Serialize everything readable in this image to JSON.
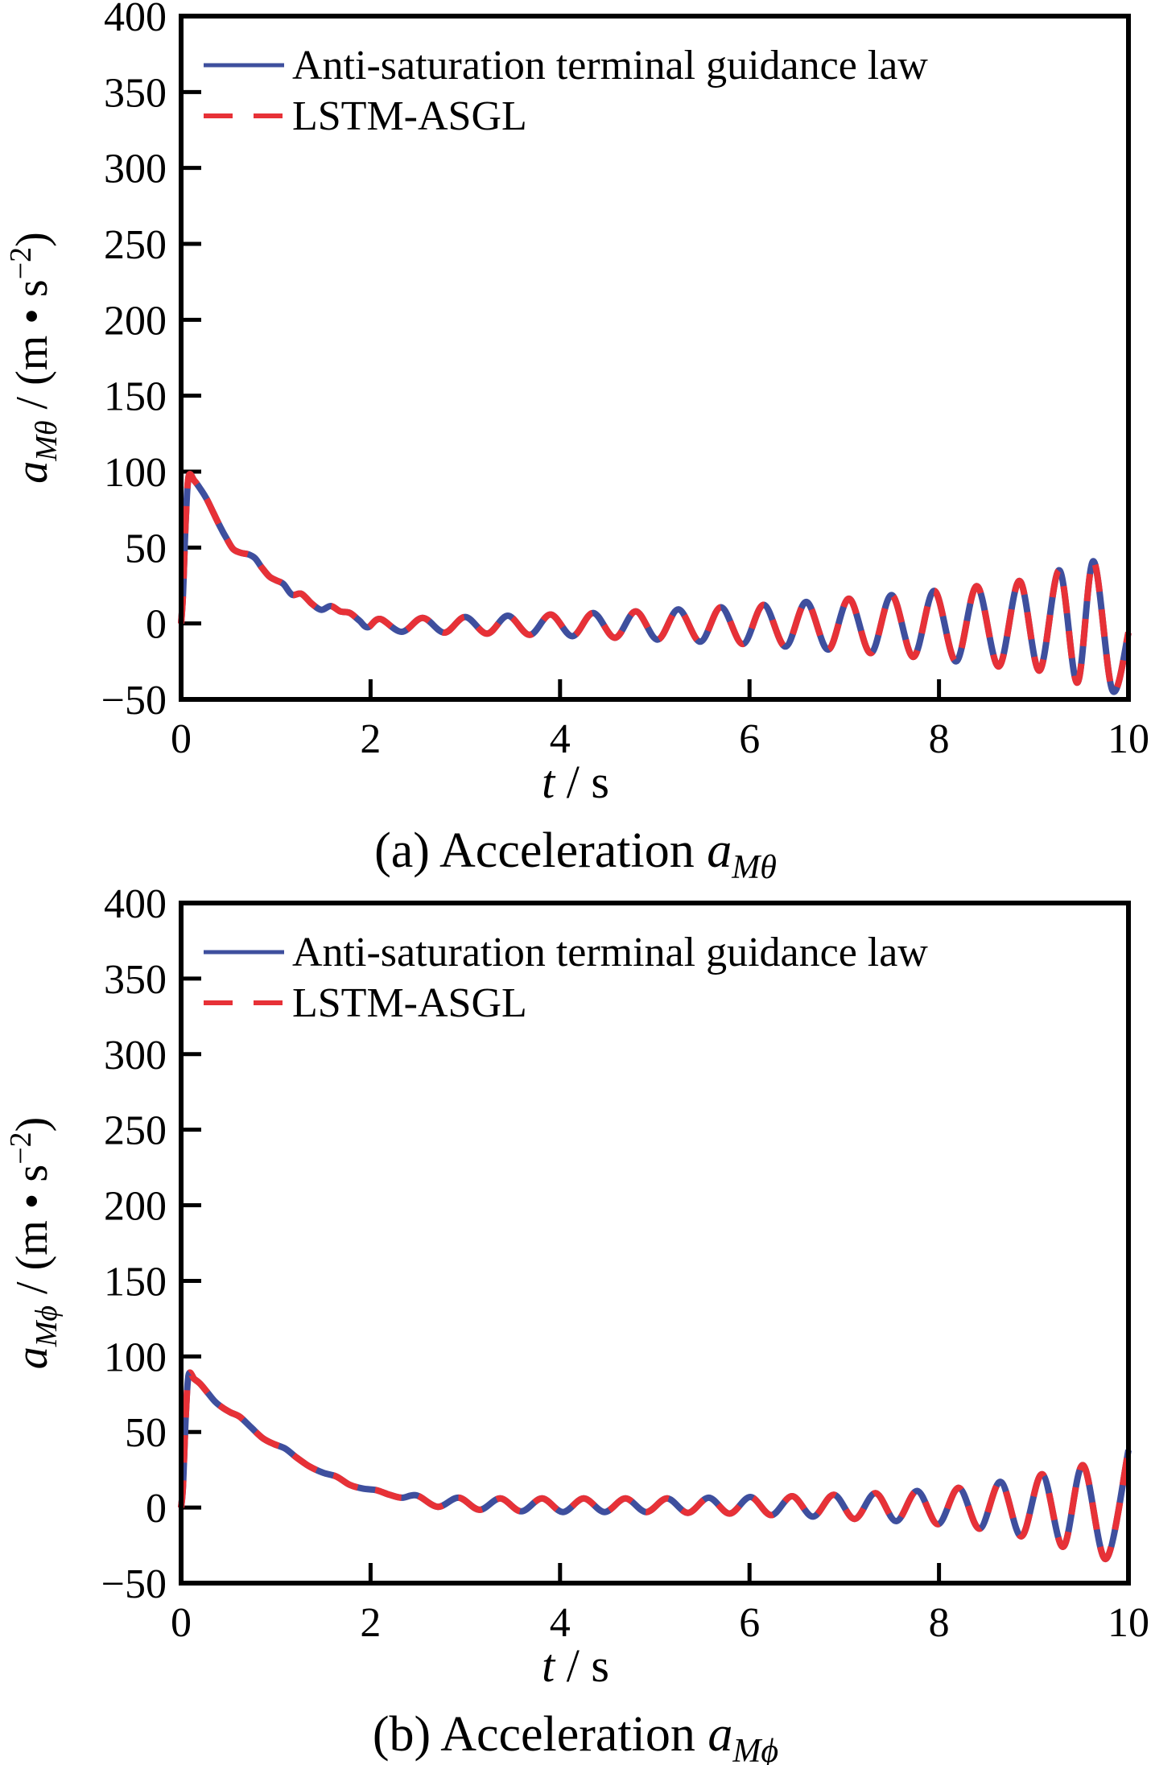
{
  "figure": {
    "background": "#ffffff",
    "axis_color": "#000000",
    "text_color": "#000000"
  },
  "chart_data": [
    {
      "type": "line",
      "panel": "a",
      "caption_prefix": "(a) Acceleration ",
      "caption_var": "a",
      "caption_sub": "Mθ",
      "xlabel_var": "t",
      "xlabel_rest": " / s",
      "ylabel_var": "a",
      "ylabel_sub": "Mθ",
      "ylabel_mid": " / (m • s",
      "ylabel_sup": "−2",
      "ylabel_end": ")",
      "xlim": [
        0,
        10
      ],
      "ylim": [
        -50,
        400
      ],
      "xticks": [
        0,
        2,
        4,
        6,
        8,
        10
      ],
      "yticks": [
        400,
        350,
        300,
        250,
        200,
        150,
        100,
        50,
        0,
        -50
      ],
      "xtick_labels": [
        "0",
        "2",
        "4",
        "6",
        "8",
        "10"
      ],
      "ytick_labels": [
        "400",
        "350",
        "300",
        "250",
        "200",
        "150",
        "100",
        "50",
        "0",
        "−50"
      ],
      "grid": false,
      "legend_position": "top-left",
      "series": [
        {
          "name": "Anti-saturation terminal guidance law",
          "color": "#3e4f9e",
          "style": "solid",
          "points": [
            [
              0,
              0
            ],
            [
              0.02,
              20
            ],
            [
              0.05,
              70
            ],
            [
              0.08,
              97
            ],
            [
              0.14,
              94
            ],
            [
              0.2,
              89
            ],
            [
              0.27,
              82
            ],
            [
              0.34,
              73
            ],
            [
              0.41,
              64
            ],
            [
              0.48,
              56
            ],
            [
              0.55,
              49
            ],
            [
              0.63,
              46.5
            ],
            [
              0.71,
              45.5
            ],
            [
              0.78,
              43
            ],
            [
              0.85,
              37
            ],
            [
              0.93,
              31
            ],
            [
              1.0,
              28.5
            ],
            [
              1.08,
              26
            ],
            [
              1.17,
              19
            ],
            [
              1.27,
              19.5
            ],
            [
              1.38,
              13
            ],
            [
              1.48,
              9
            ],
            [
              1.58,
              11.5
            ],
            [
              1.68,
              8
            ],
            [
              1.78,
              7
            ],
            [
              1.88,
              2
            ],
            [
              1.97,
              -2.5
            ],
            [
              2.1,
              3
            ],
            [
              2.33,
              -5.5
            ],
            [
              2.55,
              3.7
            ],
            [
              2.78,
              -6
            ],
            [
              3.0,
              4.3
            ],
            [
              3.23,
              -6.7
            ],
            [
              3.45,
              5.1
            ],
            [
              3.68,
              -7.5
            ],
            [
              3.9,
              5.9
            ],
            [
              4.13,
              -8.4
            ],
            [
              4.35,
              6.9
            ],
            [
              4.58,
              -9.4
            ],
            [
              4.8,
              8
            ],
            [
              5.03,
              -10.6
            ],
            [
              5.25,
              9.3
            ],
            [
              5.48,
              -12
            ],
            [
              5.7,
              10.7
            ],
            [
              5.93,
              -13.5
            ],
            [
              6.15,
              12.3
            ],
            [
              6.38,
              -15.2
            ],
            [
              6.6,
              14.2
            ],
            [
              6.83,
              -17.2
            ],
            [
              7.05,
              16.3
            ],
            [
              7.28,
              -19.5
            ],
            [
              7.5,
              18.7
            ],
            [
              7.73,
              -22
            ],
            [
              7.95,
              21.5
            ],
            [
              8.18,
              -25
            ],
            [
              8.4,
              24.6
            ],
            [
              8.63,
              -28.3
            ],
            [
              8.85,
              28
            ],
            [
              9.06,
              -31
            ],
            [
              9.27,
              35
            ],
            [
              9.46,
              -39
            ],
            [
              9.63,
              41
            ],
            [
              9.83,
              -44
            ],
            [
              10,
              -6
            ]
          ]
        },
        {
          "name": "LSTM-ASGL",
          "color": "#e73137",
          "style": "dashed",
          "points": [
            [
              0,
              0
            ],
            [
              0.02,
              20
            ],
            [
              0.05,
              70
            ],
            [
              0.08,
              97
            ],
            [
              0.14,
              94
            ],
            [
              0.2,
              89
            ],
            [
              0.27,
              82
            ],
            [
              0.34,
              73
            ],
            [
              0.41,
              64
            ],
            [
              0.48,
              56
            ],
            [
              0.55,
              49
            ],
            [
              0.63,
              46.5
            ],
            [
              0.71,
              45.5
            ],
            [
              0.78,
              43
            ],
            [
              0.85,
              37
            ],
            [
              0.93,
              31
            ],
            [
              1.0,
              28.5
            ],
            [
              1.08,
              26
            ],
            [
              1.17,
              19
            ],
            [
              1.27,
              19.5
            ],
            [
              1.38,
              13
            ],
            [
              1.48,
              9
            ],
            [
              1.58,
              11.5
            ],
            [
              1.68,
              8
            ],
            [
              1.78,
              7
            ],
            [
              1.88,
              2
            ],
            [
              1.97,
              -2.5
            ],
            [
              2.1,
              3
            ],
            [
              2.33,
              -5.5
            ],
            [
              2.55,
              3.7
            ],
            [
              2.78,
              -6
            ],
            [
              3.0,
              4.3
            ],
            [
              3.23,
              -6.7
            ],
            [
              3.45,
              5.1
            ],
            [
              3.68,
              -7.5
            ],
            [
              3.9,
              5.9
            ],
            [
              4.13,
              -8.4
            ],
            [
              4.35,
              6.9
            ],
            [
              4.58,
              -9.4
            ],
            [
              4.8,
              8
            ],
            [
              5.03,
              -10.6
            ],
            [
              5.25,
              9.3
            ],
            [
              5.48,
              -12
            ],
            [
              5.7,
              10.7
            ],
            [
              5.93,
              -13.5
            ],
            [
              6.15,
              12.3
            ],
            [
              6.38,
              -15.2
            ],
            [
              6.6,
              14.2
            ],
            [
              6.83,
              -17.2
            ],
            [
              7.05,
              16.3
            ],
            [
              7.28,
              -19.5
            ],
            [
              7.5,
              18.7
            ],
            [
              7.73,
              -22
            ],
            [
              7.95,
              21.5
            ],
            [
              8.18,
              -25
            ],
            [
              8.4,
              24.6
            ],
            [
              8.63,
              -28.3
            ],
            [
              8.85,
              28
            ],
            [
              9.06,
              -31
            ],
            [
              9.27,
              35
            ],
            [
              9.46,
              -39
            ],
            [
              9.63,
              41
            ],
            [
              9.83,
              -44
            ],
            [
              10,
              -6
            ]
          ]
        }
      ]
    },
    {
      "type": "line",
      "panel": "b",
      "caption_prefix": "(b) Acceleration ",
      "caption_var": "a",
      "caption_sub": "Mϕ",
      "xlabel_var": "t",
      "xlabel_rest": " / s",
      "ylabel_var": "a",
      "ylabel_sub": "Mϕ",
      "ylabel_mid": " / (m • s",
      "ylabel_sup": "−2",
      "ylabel_end": ")",
      "xlim": [
        0,
        10
      ],
      "ylim": [
        -50,
        400
      ],
      "xticks": [
        0,
        2,
        4,
        6,
        8,
        10
      ],
      "yticks": [
        400,
        350,
        300,
        250,
        200,
        150,
        100,
        50,
        0,
        -50
      ],
      "xtick_labels": [
        "0",
        "2",
        "4",
        "6",
        "8",
        "10"
      ],
      "ytick_labels": [
        "400",
        "350",
        "300",
        "250",
        "200",
        "150",
        "100",
        "50",
        "0",
        "−50"
      ],
      "grid": false,
      "legend_position": "top-left",
      "series": [
        {
          "name": "Anti-saturation terminal guidance law",
          "color": "#3e4f9e",
          "style": "solid",
          "points": [
            [
              0,
              0
            ],
            [
              0.02,
              15
            ],
            [
              0.05,
              62
            ],
            [
              0.08,
              88
            ],
            [
              0.14,
              85
            ],
            [
              0.2,
              82
            ],
            [
              0.28,
              76
            ],
            [
              0.36,
              70
            ],
            [
              0.44,
              66
            ],
            [
              0.52,
              63
            ],
            [
              0.62,
              60
            ],
            [
              0.74,
              53
            ],
            [
              0.86,
              46
            ],
            [
              0.98,
              42
            ],
            [
              1.1,
              39
            ],
            [
              1.22,
              33
            ],
            [
              1.36,
              27
            ],
            [
              1.5,
              23
            ],
            [
              1.64,
              20.5
            ],
            [
              1.78,
              15
            ],
            [
              1.92,
              12.5
            ],
            [
              2.06,
              11.5
            ],
            [
              2.2,
              8.5
            ],
            [
              2.33,
              6.5
            ],
            [
              2.49,
              8
            ],
            [
              2.71,
              0.5
            ],
            [
              2.93,
              6.5
            ],
            [
              3.15,
              -1.5
            ],
            [
              3.37,
              6
            ],
            [
              3.59,
              -2.5
            ],
            [
              3.81,
              6
            ],
            [
              4.03,
              -3
            ],
            [
              4.25,
              6
            ],
            [
              4.47,
              -3
            ],
            [
              4.69,
              6
            ],
            [
              4.91,
              -3
            ],
            [
              5.13,
              6
            ],
            [
              5.35,
              -3.5
            ],
            [
              5.57,
              6.5
            ],
            [
              5.79,
              -4
            ],
            [
              6.01,
              7
            ],
            [
              6.23,
              -5
            ],
            [
              6.45,
              7.5
            ],
            [
              6.67,
              -6
            ],
            [
              6.89,
              8.5
            ],
            [
              7.11,
              -7.5
            ],
            [
              7.33,
              9.5
            ],
            [
              7.55,
              -9
            ],
            [
              7.77,
              11
            ],
            [
              7.99,
              -11
            ],
            [
              8.21,
              13
            ],
            [
              8.43,
              -14
            ],
            [
              8.65,
              17
            ],
            [
              8.87,
              -19
            ],
            [
              9.09,
              22
            ],
            [
              9.31,
              -26
            ],
            [
              9.52,
              28
            ],
            [
              9.76,
              -34
            ],
            [
              10,
              38
            ]
          ]
        },
        {
          "name": "LSTM-ASGL",
          "color": "#e73137",
          "style": "dashed",
          "points": [
            [
              0,
              0
            ],
            [
              0.02,
              15
            ],
            [
              0.05,
              62
            ],
            [
              0.08,
              88
            ],
            [
              0.14,
              85
            ],
            [
              0.2,
              82
            ],
            [
              0.28,
              76
            ],
            [
              0.36,
              70
            ],
            [
              0.44,
              66
            ],
            [
              0.52,
              63
            ],
            [
              0.62,
              60
            ],
            [
              0.74,
              53
            ],
            [
              0.86,
              46
            ],
            [
              0.98,
              42
            ],
            [
              1.1,
              39
            ],
            [
              1.22,
              33
            ],
            [
              1.36,
              27
            ],
            [
              1.5,
              23
            ],
            [
              1.64,
              20.5
            ],
            [
              1.78,
              15
            ],
            [
              1.92,
              12.5
            ],
            [
              2.06,
              11.5
            ],
            [
              2.2,
              8.5
            ],
            [
              2.33,
              6.5
            ],
            [
              2.49,
              8
            ],
            [
              2.71,
              0.5
            ],
            [
              2.93,
              6.5
            ],
            [
              3.15,
              -1.5
            ],
            [
              3.37,
              6
            ],
            [
              3.59,
              -2.5
            ],
            [
              3.81,
              6
            ],
            [
              4.03,
              -3
            ],
            [
              4.25,
              6
            ],
            [
              4.47,
              -3
            ],
            [
              4.69,
              6
            ],
            [
              4.91,
              -3
            ],
            [
              5.13,
              6
            ],
            [
              5.35,
              -3.5
            ],
            [
              5.57,
              6.5
            ],
            [
              5.79,
              -4
            ],
            [
              6.01,
              7
            ],
            [
              6.23,
              -5
            ],
            [
              6.45,
              7.5
            ],
            [
              6.67,
              -6
            ],
            [
              6.89,
              8.5
            ],
            [
              7.11,
              -7.5
            ],
            [
              7.33,
              9.5
            ],
            [
              7.55,
              -9
            ],
            [
              7.77,
              11
            ],
            [
              7.99,
              -11
            ],
            [
              8.21,
              13
            ],
            [
              8.43,
              -14
            ],
            [
              8.65,
              17
            ],
            [
              8.87,
              -19
            ],
            [
              9.09,
              22
            ],
            [
              9.31,
              -26
            ],
            [
              9.52,
              28
            ],
            [
              9.76,
              -34
            ],
            [
              10,
              38
            ]
          ]
        }
      ]
    }
  ]
}
